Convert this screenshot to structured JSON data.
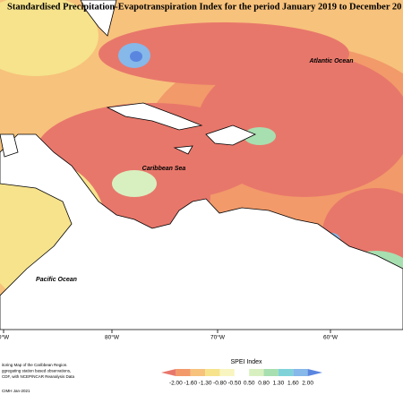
{
  "title": "Standardised Precipitation-Evapotranspiration Index for the period January 2019 to December 20",
  "labels": {
    "atlantic": "Atlantic Ocean",
    "caribbean": "Caribbean Sea",
    "pacific": "Pacific Ocean"
  },
  "longitudes": [
    "0°W",
    "80°W",
    "70°W",
    "60°W"
  ],
  "legend": {
    "title": "SPEI Index",
    "colors": [
      "#e8776b",
      "#f29a6a",
      "#f7c27c",
      "#f6e38c",
      "#f8f5c0",
      "#ffffff",
      "#d8f0c0",
      "#a8dfb0",
      "#7fd3d8",
      "#86b8ea",
      "#5b86e0"
    ],
    "ticks": [
      {
        "value": -2,
        "label": "-2.00"
      },
      {
        "value": -1.6,
        "label": "-1.60"
      },
      {
        "value": -1.3,
        "label": "-1.30"
      },
      {
        "value": -0.8,
        "label": "-0.80"
      },
      {
        "value": -0.5,
        "label": "-0.50"
      },
      {
        "value": 0.5,
        "label": "0.50"
      },
      {
        "value": 0.8,
        "label": "0.80"
      },
      {
        "value": 1.3,
        "label": "1.30"
      },
      {
        "value": 1.6,
        "label": "1.60"
      },
      {
        "value": 2,
        "label": "2.00"
      }
    ]
  },
  "footnote": [
    "itoring Map of the Caribbean Region.",
    "ggregating station based observations,",
    "CDF, with NCEP/NCAR Reanalysis Data"
  ],
  "credit": "CIMH Jan-2021"
}
